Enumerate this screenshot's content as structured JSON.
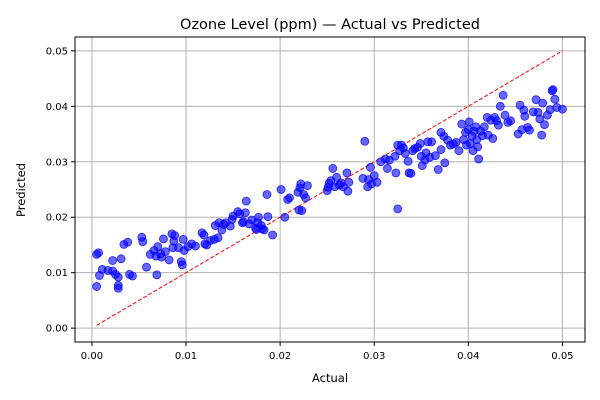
{
  "chart_data": {
    "type": "scatter",
    "title": "Ozone Level (ppm) — Actual vs Predicted",
    "xlabel": "Actual",
    "ylabel": "Predicted",
    "xlim": [
      -0.0018,
      0.0524
    ],
    "ylim": [
      -0.0025,
      0.0525
    ],
    "xticks": [
      0.0,
      0.01,
      0.02,
      0.03,
      0.04,
      0.05
    ],
    "xtick_labels": [
      "0.00",
      "0.01",
      "0.02",
      "0.03",
      "0.04",
      "0.05"
    ],
    "yticks": [
      0.0,
      0.01,
      0.02,
      0.03,
      0.04,
      0.05
    ],
    "ytick_labels": [
      "0.00",
      "0.01",
      "0.02",
      "0.03",
      "0.04",
      "0.05"
    ],
    "grid": true,
    "legend": "none",
    "colors": {
      "points": "#0000ff",
      "reference_line": "#ff0000",
      "grid": "#b0b0b0"
    },
    "reference_line": {
      "style": "dashed",
      "x": [
        0.0005,
        0.05
      ],
      "y": [
        0.0005,
        0.05
      ]
    },
    "series": [
      {
        "points": [
          [
            0.0005,
            0.0075
          ],
          [
            0.0005,
            0.0133
          ],
          [
            0.0007,
            0.0136
          ],
          [
            0.0008,
            0.0095
          ],
          [
            0.0011,
            0.0106
          ],
          [
            0.0017,
            0.0104
          ],
          [
            0.0022,
            0.0122
          ],
          [
            0.0022,
            0.0103
          ],
          [
            0.0025,
            0.0097
          ],
          [
            0.0028,
            0.0092
          ],
          [
            0.0028,
            0.0077
          ],
          [
            0.0028,
            0.0072
          ],
          [
            0.0031,
            0.0125
          ],
          [
            0.0034,
            0.0151
          ],
          [
            0.0038,
            0.0155
          ],
          [
            0.004,
            0.0097
          ],
          [
            0.0043,
            0.0094
          ],
          [
            0.0053,
            0.0164
          ],
          [
            0.0054,
            0.0156
          ],
          [
            0.0058,
            0.011
          ],
          [
            0.0062,
            0.0133
          ],
          [
            0.0066,
            0.014
          ],
          [
            0.0068,
            0.013
          ],
          [
            0.0069,
            0.0096
          ],
          [
            0.007,
            0.0147
          ],
          [
            0.0073,
            0.0134
          ],
          [
            0.0074,
            0.0128
          ],
          [
            0.0076,
            0.0161
          ],
          [
            0.0078,
            0.0138
          ],
          [
            0.0082,
            0.0123
          ],
          [
            0.0085,
            0.017
          ],
          [
            0.0086,
            0.0145
          ],
          [
            0.0087,
            0.0157
          ],
          [
            0.0088,
            0.0167
          ],
          [
            0.0092,
            0.0145
          ],
          [
            0.0095,
            0.012
          ],
          [
            0.0096,
            0.0114
          ],
          [
            0.0097,
            0.016
          ],
          [
            0.0098,
            0.014
          ],
          [
            0.0102,
            0.0147
          ],
          [
            0.0106,
            0.0152
          ],
          [
            0.011,
            0.0148
          ],
          [
            0.0117,
            0.0172
          ],
          [
            0.0119,
            0.0168
          ],
          [
            0.012,
            0.0152
          ],
          [
            0.0122,
            0.015
          ],
          [
            0.0126,
            0.0158
          ],
          [
            0.013,
            0.016
          ],
          [
            0.0131,
            0.0185
          ],
          [
            0.0134,
            0.0163
          ],
          [
            0.0135,
            0.019
          ],
          [
            0.0138,
            0.0177
          ],
          [
            0.014,
            0.0187
          ],
          [
            0.0142,
            0.019
          ],
          [
            0.0147,
            0.0184
          ],
          [
            0.0149,
            0.0196
          ],
          [
            0.015,
            0.0202
          ],
          [
            0.0155,
            0.021
          ],
          [
            0.0157,
            0.0206
          ],
          [
            0.016,
            0.019
          ],
          [
            0.0161,
            0.0192
          ],
          [
            0.0163,
            0.0208
          ],
          [
            0.0164,
            0.0229
          ],
          [
            0.0167,
            0.0188
          ],
          [
            0.017,
            0.0195
          ],
          [
            0.0174,
            0.018
          ],
          [
            0.0175,
            0.0178
          ],
          [
            0.0176,
            0.019
          ],
          [
            0.0177,
            0.02
          ],
          [
            0.018,
            0.0185
          ],
          [
            0.0181,
            0.0179
          ],
          [
            0.0183,
            0.0177
          ],
          [
            0.0186,
            0.0241
          ],
          [
            0.0187,
            0.0201
          ],
          [
            0.0192,
            0.0168
          ],
          [
            0.0201,
            0.025
          ],
          [
            0.0205,
            0.02
          ],
          [
            0.0208,
            0.0232
          ],
          [
            0.021,
            0.0235
          ],
          [
            0.0219,
            0.0245
          ],
          [
            0.022,
            0.0213
          ],
          [
            0.0221,
            0.0253
          ],
          [
            0.0222,
            0.026
          ],
          [
            0.0223,
            0.0212
          ],
          [
            0.0225,
            0.0241
          ],
          [
            0.0227,
            0.0235
          ],
          [
            0.0229,
            0.0257
          ],
          [
            0.025,
            0.0248
          ],
          [
            0.0251,
            0.0254
          ],
          [
            0.0252,
            0.0261
          ],
          [
            0.0254,
            0.0266
          ],
          [
            0.0256,
            0.0288
          ],
          [
            0.0258,
            0.0255
          ],
          [
            0.026,
            0.0272
          ],
          [
            0.0263,
            0.0258
          ],
          [
            0.0265,
            0.0262
          ],
          [
            0.0267,
            0.0255
          ],
          [
            0.0271,
            0.028
          ],
          [
            0.0272,
            0.0247
          ],
          [
            0.0273,
            0.0263
          ],
          [
            0.0288,
            0.027
          ],
          [
            0.029,
            0.0337
          ],
          [
            0.0293,
            0.0255
          ],
          [
            0.0294,
            0.0268
          ],
          [
            0.0296,
            0.029
          ],
          [
            0.0297,
            0.026
          ],
          [
            0.03,
            0.0275
          ],
          [
            0.0303,
            0.0263
          ],
          [
            0.0307,
            0.03
          ],
          [
            0.0312,
            0.0305
          ],
          [
            0.0314,
            0.0288
          ],
          [
            0.0316,
            0.0303
          ],
          [
            0.0322,
            0.031
          ],
          [
            0.0323,
            0.028
          ],
          [
            0.0325,
            0.0215
          ],
          [
            0.0325,
            0.033
          ],
          [
            0.0327,
            0.032
          ],
          [
            0.0329,
            0.033
          ],
          [
            0.0331,
            0.0325
          ],
          [
            0.0333,
            0.0315
          ],
          [
            0.0336,
            0.0301
          ],
          [
            0.0337,
            0.028
          ],
          [
            0.0339,
            0.0279
          ],
          [
            0.0341,
            0.032
          ],
          [
            0.0343,
            0.0324
          ],
          [
            0.0346,
            0.0326
          ],
          [
            0.0349,
            0.0333
          ],
          [
            0.035,
            0.031
          ],
          [
            0.0351,
            0.0293
          ],
          [
            0.0354,
            0.0303
          ],
          [
            0.0355,
            0.0316
          ],
          [
            0.0357,
            0.0336
          ],
          [
            0.0359,
            0.0308
          ],
          [
            0.0361,
            0.0336
          ],
          [
            0.0365,
            0.0311
          ],
          [
            0.0368,
            0.0286
          ],
          [
            0.0371,
            0.0322
          ],
          [
            0.0371,
            0.0353
          ],
          [
            0.0374,
            0.0346
          ],
          [
            0.0375,
            0.0298
          ],
          [
            0.0378,
            0.0339
          ],
          [
            0.0381,
            0.033
          ],
          [
            0.0384,
            0.0332
          ],
          [
            0.0387,
            0.0335
          ],
          [
            0.039,
            0.032
          ],
          [
            0.0393,
            0.0368
          ],
          [
            0.0395,
            0.034
          ],
          [
            0.0397,
            0.0353
          ],
          [
            0.0398,
            0.033
          ],
          [
            0.04,
            0.0358
          ],
          [
            0.0401,
            0.0372
          ],
          [
            0.0402,
            0.0333
          ],
          [
            0.0404,
            0.0346
          ],
          [
            0.0405,
            0.032
          ],
          [
            0.0406,
            0.0355
          ],
          [
            0.0408,
            0.0363
          ],
          [
            0.0409,
            0.034
          ],
          [
            0.041,
            0.0327
          ],
          [
            0.0411,
            0.0305
          ],
          [
            0.0413,
            0.0355
          ],
          [
            0.0415,
            0.0347
          ],
          [
            0.0417,
            0.0363
          ],
          [
            0.042,
            0.038
          ],
          [
            0.0421,
            0.0348
          ],
          [
            0.0424,
            0.0375
          ],
          [
            0.0426,
            0.0342
          ],
          [
            0.0428,
            0.038
          ],
          [
            0.043,
            0.0374
          ],
          [
            0.0432,
            0.0366
          ],
          [
            0.0434,
            0.04
          ],
          [
            0.0437,
            0.042
          ],
          [
            0.0439,
            0.0384
          ],
          [
            0.0442,
            0.0371
          ],
          [
            0.0445,
            0.0374
          ],
          [
            0.0453,
            0.035
          ],
          [
            0.0455,
            0.0402
          ],
          [
            0.0457,
            0.0358
          ],
          [
            0.0459,
            0.0393
          ],
          [
            0.046,
            0.0382
          ],
          [
            0.0463,
            0.0362
          ],
          [
            0.0465,
            0.0357
          ],
          [
            0.0469,
            0.039
          ],
          [
            0.0472,
            0.0412
          ],
          [
            0.0474,
            0.0389
          ],
          [
            0.0476,
            0.0377
          ],
          [
            0.0478,
            0.0348
          ],
          [
            0.0479,
            0.0406
          ],
          [
            0.0481,
            0.0367
          ],
          [
            0.0484,
            0.0384
          ],
          [
            0.0487,
            0.0394
          ],
          [
            0.0489,
            0.0428
          ],
          [
            0.049,
            0.043
          ],
          [
            0.0492,
            0.0413
          ],
          [
            0.0494,
            0.0398
          ],
          [
            0.05,
            0.0395
          ]
        ]
      }
    ]
  }
}
